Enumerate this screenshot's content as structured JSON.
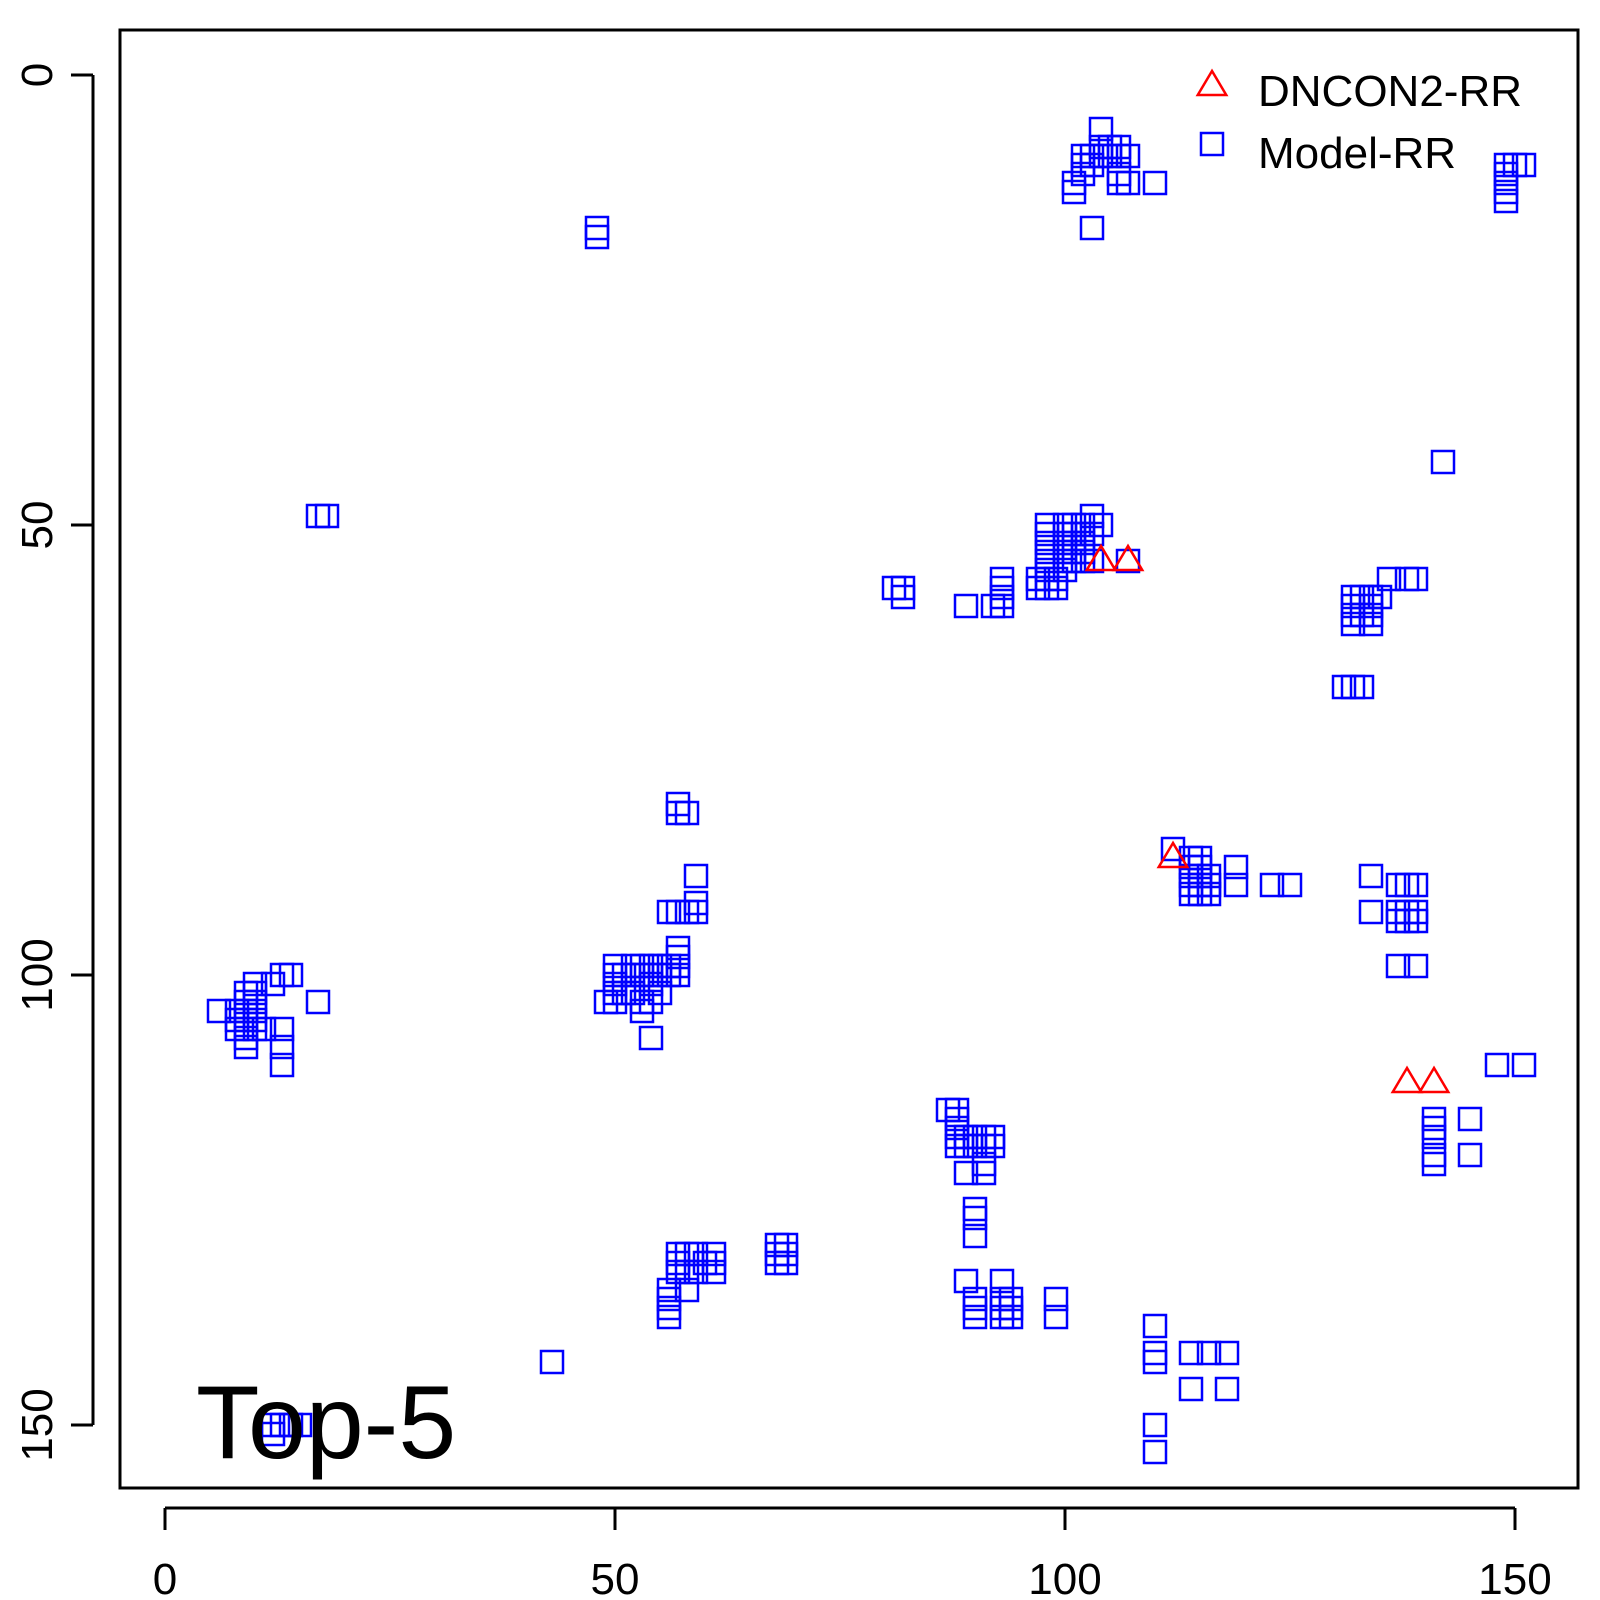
{
  "chart_data": {
    "type": "scatter",
    "title": "",
    "xlabel": "",
    "ylabel": "",
    "xlim": [
      -5,
      152
    ],
    "ylim": [
      155,
      -5
    ],
    "y_axis_inverted": true,
    "x_ticks": [
      0,
      50,
      100,
      150
    ],
    "y_ticks": [
      0,
      50,
      100,
      150
    ],
    "grid": false,
    "legend_position": "top-right",
    "annotation": "Top-5",
    "series": [
      {
        "name": "DNCON2-RR",
        "marker": "triangle",
        "color": "#ff0000",
        "points": [
          [
            104,
            54
          ],
          [
            107,
            54
          ],
          [
            112,
            87
          ],
          [
            138,
            112
          ],
          [
            141,
            112
          ]
        ]
      },
      {
        "name": "Model-RR",
        "marker": "square",
        "color": "#0000ff",
        "points": [
          [
            48,
            17
          ],
          [
            48,
            18
          ],
          [
            17,
            49
          ],
          [
            18,
            49
          ],
          [
            101,
            12
          ],
          [
            101,
            13
          ],
          [
            102,
            9
          ],
          [
            102,
            10
          ],
          [
            102,
            11
          ],
          [
            103,
            9
          ],
          [
            103,
            10
          ],
          [
            104,
            6
          ],
          [
            104,
            8
          ],
          [
            104,
            9
          ],
          [
            105,
            8
          ],
          [
            105,
            9
          ],
          [
            106,
            8
          ],
          [
            106,
            9
          ],
          [
            106,
            11
          ],
          [
            106,
            12
          ],
          [
            107,
            9
          ],
          [
            107,
            12
          ],
          [
            110,
            12
          ],
          [
            103,
            17
          ],
          [
            149,
            10
          ],
          [
            149,
            11
          ],
          [
            149,
            12
          ],
          [
            149,
            13
          ],
          [
            149,
            14
          ],
          [
            150,
            10
          ],
          [
            151,
            10
          ],
          [
            142,
            43
          ],
          [
            98,
            50
          ],
          [
            98,
            51
          ],
          [
            98,
            52
          ],
          [
            98,
            53
          ],
          [
            98,
            54
          ],
          [
            98,
            55
          ],
          [
            98,
            56
          ],
          [
            98,
            57
          ],
          [
            97,
            56
          ],
          [
            97,
            57
          ],
          [
            99,
            56
          ],
          [
            99,
            57
          ],
          [
            100,
            50
          ],
          [
            100,
            51
          ],
          [
            100,
            52
          ],
          [
            100,
            53
          ],
          [
            100,
            54
          ],
          [
            100,
            55
          ],
          [
            101,
            50
          ],
          [
            101,
            51
          ],
          [
            101,
            52
          ],
          [
            101,
            53
          ],
          [
            101,
            54
          ],
          [
            102,
            50
          ],
          [
            102,
            51
          ],
          [
            102,
            52
          ],
          [
            102,
            53
          ],
          [
            102,
            54
          ],
          [
            103,
            49
          ],
          [
            103,
            51
          ],
          [
            103,
            54
          ],
          [
            104,
            50
          ],
          [
            107,
            54
          ],
          [
            81,
            57
          ],
          [
            82,
            57
          ],
          [
            82,
            58
          ],
          [
            89,
            59
          ],
          [
            92,
            59
          ],
          [
            93,
            56
          ],
          [
            93,
            57
          ],
          [
            93,
            58
          ],
          [
            93,
            59
          ],
          [
            131,
            68
          ],
          [
            132,
            68
          ],
          [
            133,
            68
          ],
          [
            132,
            58
          ],
          [
            132,
            59
          ],
          [
            132,
            60
          ],
          [
            132,
            61
          ],
          [
            133,
            58
          ],
          [
            133,
            60
          ],
          [
            134,
            58
          ],
          [
            134,
            59
          ],
          [
            134,
            60
          ],
          [
            134,
            61
          ],
          [
            135,
            58
          ],
          [
            136,
            56
          ],
          [
            138,
            56
          ],
          [
            139,
            56
          ],
          [
            57,
            81
          ],
          [
            57,
            82
          ],
          [
            58,
            82
          ],
          [
            112,
            86
          ],
          [
            114,
            87
          ],
          [
            114,
            88
          ],
          [
            114,
            89
          ],
          [
            114,
            90
          ],
          [
            114,
            91
          ],
          [
            115,
            87
          ],
          [
            115,
            88
          ],
          [
            115,
            89
          ],
          [
            115,
            90
          ],
          [
            115,
            91
          ],
          [
            116,
            89
          ],
          [
            116,
            90
          ],
          [
            116,
            91
          ],
          [
            119,
            88
          ],
          [
            119,
            90
          ],
          [
            123,
            90
          ],
          [
            125,
            90
          ],
          [
            134,
            89
          ],
          [
            134,
            93
          ],
          [
            137,
            90
          ],
          [
            137,
            93
          ],
          [
            137,
            94
          ],
          [
            138,
            90
          ],
          [
            138,
            93
          ],
          [
            138,
            94
          ],
          [
            139,
            90
          ],
          [
            139,
            93
          ],
          [
            139,
            94
          ],
          [
            137,
            99
          ],
          [
            139,
            99
          ],
          [
            59,
            89
          ],
          [
            59,
            92
          ],
          [
            59,
            93
          ],
          [
            56,
            93
          ],
          [
            57,
            93
          ],
          [
            58,
            93
          ],
          [
            57,
            97
          ],
          [
            57,
            98
          ],
          [
            57,
            99
          ],
          [
            57,
            100
          ],
          [
            56,
            99
          ],
          [
            56,
            100
          ],
          [
            55,
            99
          ],
          [
            55,
            100
          ],
          [
            54,
            99
          ],
          [
            54,
            100
          ],
          [
            54,
            101
          ],
          [
            53,
            99
          ],
          [
            53,
            100
          ],
          [
            52,
            99
          ],
          [
            52,
            100
          ],
          [
            52,
            102
          ],
          [
            51,
            100
          ],
          [
            51,
            102
          ],
          [
            50,
            99
          ],
          [
            50,
            100
          ],
          [
            50,
            101
          ],
          [
            50,
            102
          ],
          [
            50,
            103
          ],
          [
            49,
            103
          ],
          [
            53,
            103
          ],
          [
            54,
            103
          ],
          [
            55,
            102
          ],
          [
            53,
            104
          ],
          [
            54,
            107
          ],
          [
            6,
            104
          ],
          [
            8,
            104
          ],
          [
            8,
            105
          ],
          [
            8,
            106
          ],
          [
            9,
            102
          ],
          [
            9,
            103
          ],
          [
            9,
            104
          ],
          [
            9,
            105
          ],
          [
            9,
            106
          ],
          [
            9,
            107
          ],
          [
            9,
            108
          ],
          [
            10,
            101
          ],
          [
            10,
            102
          ],
          [
            10,
            103
          ],
          [
            10,
            104
          ],
          [
            10,
            105
          ],
          [
            10,
            106
          ],
          [
            11,
            106
          ],
          [
            12,
            101
          ],
          [
            13,
            100
          ],
          [
            14,
            100
          ],
          [
            13,
            106
          ],
          [
            13,
            108
          ],
          [
            13,
            110
          ],
          [
            17,
            103
          ],
          [
            87,
            115
          ],
          [
            88,
            115
          ],
          [
            88,
            116
          ],
          [
            88,
            117
          ],
          [
            88,
            118
          ],
          [
            88,
            119
          ],
          [
            89,
            118
          ],
          [
            89,
            119
          ],
          [
            90,
            118
          ],
          [
            90,
            119
          ],
          [
            91,
            118
          ],
          [
            91,
            119
          ],
          [
            92,
            118
          ],
          [
            92,
            119
          ],
          [
            89,
            122
          ],
          [
            91,
            122
          ],
          [
            91,
            121
          ],
          [
            90,
            126
          ],
          [
            90,
            127
          ],
          [
            90,
            129
          ],
          [
            141,
            116
          ],
          [
            141,
            117
          ],
          [
            141,
            118
          ],
          [
            141,
            120
          ],
          [
            141,
            121
          ],
          [
            145,
            116
          ],
          [
            145,
            120
          ],
          [
            148,
            110
          ],
          [
            151,
            110
          ],
          [
            57,
            131
          ],
          [
            57,
            132
          ],
          [
            57,
            133
          ],
          [
            58,
            131
          ],
          [
            58,
            133
          ],
          [
            59,
            131
          ],
          [
            59,
            133
          ],
          [
            60,
            132
          ],
          [
            61,
            131
          ],
          [
            61,
            132
          ],
          [
            61,
            133
          ],
          [
            56,
            135
          ],
          [
            56,
            136
          ],
          [
            56,
            137
          ],
          [
            56,
            138
          ],
          [
            58,
            135
          ],
          [
            68,
            130
          ],
          [
            68,
            131
          ],
          [
            68,
            132
          ],
          [
            69,
            130
          ],
          [
            69,
            131
          ],
          [
            69,
            132
          ],
          [
            89,
            134
          ],
          [
            90,
            136
          ],
          [
            90,
            137
          ],
          [
            90,
            138
          ],
          [
            93,
            134
          ],
          [
            93,
            136
          ],
          [
            93,
            137
          ],
          [
            93,
            138
          ],
          [
            94,
            136
          ],
          [
            94,
            137
          ],
          [
            94,
            138
          ],
          [
            99,
            136
          ],
          [
            99,
            138
          ],
          [
            43,
            143
          ],
          [
            110,
            139
          ],
          [
            110,
            142
          ],
          [
            110,
            143
          ],
          [
            114,
            142
          ],
          [
            116,
            142
          ],
          [
            118,
            142
          ],
          [
            114,
            146
          ],
          [
            118,
            146
          ],
          [
            110,
            150
          ],
          [
            110,
            153
          ],
          [
            12,
            150
          ],
          [
            12,
            151
          ],
          [
            13,
            150
          ],
          [
            14,
            150
          ],
          [
            15,
            150
          ]
        ]
      }
    ]
  }
}
